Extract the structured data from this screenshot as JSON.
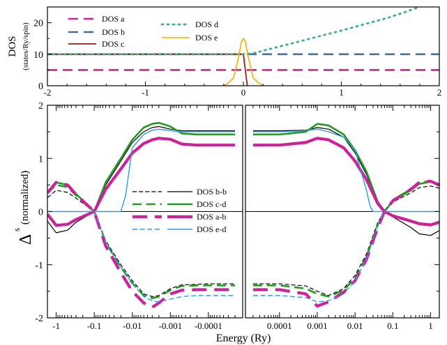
{
  "colors": {
    "dos_a": "#cc2299",
    "dos_b": "#4a6f8a",
    "dos_c": "#aa1111",
    "dos_d": "#3cae8c",
    "dos_e": "#ffaa00",
    "black": "#000000",
    "green": "#229922",
    "magenta": "#cc2299",
    "blue": "#2c9be0"
  },
  "chart_data": [
    {
      "type": "line",
      "ylabel": "DOS",
      "ylabel_sub": "(states/Ry/spin)",
      "xlim": [
        -2,
        2
      ],
      "ylim": [
        0,
        25
      ],
      "xticks": [
        "-2",
        "-1",
        "0",
        "1",
        "2"
      ],
      "yticks": [
        "0",
        "10",
        "20"
      ],
      "legend": [
        "DOS a",
        "DOS b",
        "DOS c",
        "DOS d",
        "DOS e"
      ],
      "series": [
        {
          "name": "DOS a",
          "style": "dash",
          "x": [
            -2,
            2
          ],
          "y": [
            5,
            5
          ]
        },
        {
          "name": "DOS b",
          "style": "dash",
          "x": [
            -2,
            2
          ],
          "y": [
            10,
            10
          ]
        },
        {
          "name": "DOS c",
          "style": "solid",
          "x": [
            -2,
            0,
            0.02,
            0.04
          ],
          "y": [
            10,
            10,
            5,
            0
          ]
        },
        {
          "name": "DOS d",
          "style": "dot",
          "x": [
            -2,
            0,
            0.1,
            0.5,
            1.0,
            1.5,
            1.8
          ],
          "y": [
            10,
            10,
            10.3,
            13.5,
            17.5,
            21.8,
            25
          ]
        },
        {
          "name": "DOS e",
          "style": "solid",
          "x": [
            -0.2,
            -0.15,
            -0.1,
            -0.05,
            -0.02,
            0,
            0.02,
            0.05,
            0.1,
            0.15,
            0.2
          ],
          "y": [
            0,
            1,
            2.5,
            9,
            14,
            15,
            14,
            9,
            2.5,
            1,
            0
          ]
        }
      ]
    },
    {
      "type": "line",
      "ylabel": "Δ",
      "ylabel_sup": "s",
      "ylabel_rest": "(normalized)",
      "xlabel": "Energy (Ry)",
      "ylim": [
        -2,
        2
      ],
      "yticks": [
        "-2",
        "-1",
        "0",
        "1",
        "2"
      ],
      "xscale": "symlog (log of |E|, mirrored about 0.05)",
      "left_xticks": [
        "-1",
        "-0.1",
        "-0.01",
        "-0.001",
        "-0.0001"
      ],
      "right_xticks": [
        "0.0001",
        "0.001",
        "0.01",
        "0.1",
        "1"
      ],
      "legend": [
        "DOS b-b",
        "DOS c-d",
        "DOS a-b",
        "DOS e-d"
      ],
      "series": [
        {
          "name": "DOS b-b",
          "side": "left",
          "style": "dash",
          "x": [
            -1.7,
            -1,
            -0.5,
            -0.3,
            -0.1,
            -0.05,
            -0.02,
            -0.01,
            -0.005,
            -0.003,
            -0.002,
            -0.001,
            -0.0005,
            -0.0002,
            -0.0001,
            -5e-05,
            -2e-05
          ],
          "y": [
            0.26,
            0.4,
            0.36,
            0.25,
            0,
            -0.55,
            -1.0,
            -1.3,
            -1.55,
            -1.6,
            -1.58,
            -1.45,
            -1.38,
            -1.37,
            -1.36,
            -1.36,
            -1.36
          ]
        },
        {
          "name": "DOS b-b",
          "side": "left",
          "style": "solid",
          "x": [
            -1.7,
            -1,
            -0.5,
            -0.3,
            -0.1,
            -0.05,
            -0.02,
            -0.01,
            -0.005,
            -0.003,
            -0.002,
            -0.001,
            -0.0005,
            -0.0002,
            -0.0001,
            -5e-05,
            -2e-05
          ],
          "y": [
            -0.18,
            -0.4,
            -0.35,
            -0.2,
            0,
            0.5,
            0.95,
            1.3,
            1.5,
            1.58,
            1.6,
            1.55,
            1.52,
            1.52,
            1.52,
            1.52,
            1.52
          ]
        },
        {
          "name": "DOS c-d",
          "side": "left",
          "style": "dash",
          "x": [
            -1.7,
            -1,
            -0.5,
            -0.3,
            -0.1,
            -0.05,
            -0.02,
            -0.01,
            -0.005,
            -0.003,
            -0.002,
            -0.001,
            -0.0005,
            -0.0002,
            -0.0001,
            -5e-05,
            -2e-05
          ],
          "y": [
            0.35,
            0.5,
            0.46,
            0.3,
            0,
            -0.58,
            -1.05,
            -1.35,
            -1.58,
            -1.63,
            -1.6,
            -1.48,
            -1.4,
            -1.39,
            -1.39,
            -1.39,
            -1.39
          ]
        },
        {
          "name": "DOS c-d",
          "side": "left",
          "style": "solid",
          "x": [
            -1.7,
            -1,
            -0.5,
            -0.3,
            -0.1,
            -0.05,
            -0.02,
            -0.01,
            -0.005,
            -0.003,
            -0.002,
            -0.001,
            -0.0005,
            -0.0002,
            -0.0001,
            -5e-05,
            -2e-05
          ],
          "y": [
            0.36,
            0.55,
            0.5,
            0.33,
            0,
            0.55,
            1.0,
            1.35,
            1.58,
            1.65,
            1.67,
            1.6,
            1.47,
            1.45,
            1.45,
            1.45,
            1.45
          ]
        },
        {
          "name": "DOS a-b",
          "side": "left",
          "style": "dash",
          "x": [
            -1.7,
            -1,
            -0.5,
            -0.3,
            -0.1,
            -0.05,
            -0.02,
            -0.01,
            -0.005,
            -0.003,
            -0.002,
            -0.001,
            -0.0005,
            -0.0002,
            -0.0001,
            -5e-05,
            -2e-05
          ],
          "y": [
            0.35,
            0.55,
            0.5,
            0.32,
            0,
            -0.65,
            -1.15,
            -1.5,
            -1.72,
            -1.8,
            -1.72,
            -1.55,
            -1.48,
            -1.47,
            -1.47,
            -1.47,
            -1.47
          ]
        },
        {
          "name": "DOS a-b",
          "side": "left",
          "style": "solid",
          "x": [
            -1.7,
            -1,
            -0.5,
            -0.3,
            -0.1,
            -0.05,
            -0.02,
            -0.01,
            -0.005,
            -0.003,
            -0.002,
            -0.001,
            -0.0005,
            -0.0002,
            -0.0001,
            -5e-05,
            -2e-05
          ],
          "y": [
            -0.05,
            -0.26,
            -0.24,
            -0.15,
            0,
            0.42,
            0.8,
            1.1,
            1.28,
            1.35,
            1.38,
            1.36,
            1.27,
            1.25,
            1.25,
            1.25,
            1.25
          ]
        },
        {
          "name": "DOS e-d",
          "side": "left",
          "style": "dash",
          "x": [
            -0.1,
            -0.05,
            -0.02,
            -0.01,
            -0.005,
            -0.003,
            -0.002,
            -0.001,
            -0.0005,
            -0.0002,
            -0.0001,
            -5e-05,
            -2e-05
          ],
          "y": [
            0,
            -0.58,
            -1.05,
            -1.35,
            -1.6,
            -1.68,
            -1.7,
            -1.65,
            -1.6,
            -1.58,
            -1.58,
            -1.58,
            -1.58
          ]
        },
        {
          "name": "DOS e-d",
          "side": "left",
          "style": "solid",
          "x": [
            -1.7,
            -0.05,
            -0.02,
            -0.015,
            -0.01,
            -0.005,
            -0.003,
            -0.002,
            -0.001,
            -0.0005,
            -0.0002,
            -0.0001,
            -5e-05,
            -2e-05
          ],
          "y": [
            0,
            0,
            0,
            0.3,
            1.2,
            1.45,
            1.53,
            1.55,
            1.52,
            1.5,
            1.5,
            1.5,
            1.5,
            1.5
          ]
        },
        {
          "name": "DOS b-b",
          "side": "right",
          "style": "dash",
          "x": [
            2e-05,
            0.0001,
            0.0005,
            0.001,
            0.002,
            0.005,
            0.01,
            0.02,
            0.04,
            0.06,
            0.1,
            0.3,
            0.5,
            1,
            1.7
          ],
          "y": [
            -1.36,
            -1.36,
            -1.4,
            -1.5,
            -1.58,
            -1.45,
            -1.2,
            -0.8,
            -0.2,
            0,
            0.18,
            0.35,
            0.45,
            0.48,
            0.44
          ]
        },
        {
          "name": "DOS b-b",
          "side": "right",
          "style": "solid",
          "x": [
            2e-05,
            0.0001,
            0.0005,
            0.001,
            0.002,
            0.005,
            0.01,
            0.02,
            0.04,
            0.06,
            0.1,
            0.3,
            0.5,
            1,
            1.7
          ],
          "y": [
            1.52,
            1.52,
            1.53,
            1.58,
            1.55,
            1.4,
            1.1,
            0.7,
            0.15,
            0,
            -0.1,
            -0.3,
            -0.42,
            -0.45,
            -0.36
          ]
        },
        {
          "name": "DOS c-d",
          "side": "right",
          "style": "dash",
          "x": [
            2e-05,
            0.0001,
            0.0005,
            0.001,
            0.002,
            0.005,
            0.01,
            0.02,
            0.04,
            0.06,
            0.1,
            0.3,
            0.5,
            1,
            1.7
          ],
          "y": [
            -1.39,
            -1.39,
            -1.45,
            -1.55,
            -1.6,
            -1.48,
            -1.25,
            -0.85,
            -0.25,
            0,
            0.22,
            0.42,
            0.55,
            0.57,
            0.5
          ]
        },
        {
          "name": "DOS c-d",
          "side": "right",
          "style": "solid",
          "x": [
            2e-05,
            0.0001,
            0.0005,
            0.001,
            0.002,
            0.005,
            0.01,
            0.02,
            0.04,
            0.06,
            0.1,
            0.3,
            0.5,
            1,
            1.7
          ],
          "y": [
            1.45,
            1.45,
            1.5,
            1.65,
            1.62,
            1.45,
            1.15,
            0.75,
            0.18,
            0,
            0.2,
            0.4,
            0.52,
            0.56,
            0.52
          ]
        },
        {
          "name": "DOS a-b",
          "side": "right",
          "style": "dash",
          "x": [
            2e-05,
            0.0001,
            0.0005,
            0.001,
            0.002,
            0.005,
            0.01,
            0.02,
            0.04,
            0.06,
            0.1,
            0.3,
            0.5,
            1,
            1.7
          ],
          "y": [
            -1.47,
            -1.47,
            -1.55,
            -1.78,
            -1.7,
            -1.52,
            -1.3,
            -0.9,
            -0.3,
            0,
            0.2,
            0.42,
            0.55,
            0.57,
            0.5
          ]
        },
        {
          "name": "DOS a-b",
          "side": "right",
          "style": "solid",
          "x": [
            2e-05,
            0.0001,
            0.0005,
            0.001,
            0.002,
            0.005,
            0.01,
            0.02,
            0.04,
            0.06,
            0.1,
            0.3,
            0.5,
            1,
            1.7
          ],
          "y": [
            1.25,
            1.25,
            1.3,
            1.38,
            1.35,
            1.2,
            0.95,
            0.6,
            0.15,
            0,
            -0.08,
            -0.18,
            -0.23,
            -0.25,
            -0.2
          ]
        },
        {
          "name": "DOS e-d",
          "side": "right",
          "style": "dash",
          "x": [
            2e-05,
            0.0001,
            0.0005,
            0.001,
            0.002,
            0.005,
            0.01,
            0.02,
            0.04,
            0.06
          ],
          "y": [
            -1.58,
            -1.58,
            -1.62,
            -1.7,
            -1.68,
            -1.55,
            -1.3,
            -0.9,
            -0.25,
            0
          ]
        },
        {
          "name": "DOS e-d",
          "side": "right",
          "style": "solid",
          "x": [
            2e-05,
            0.0001,
            0.0005,
            0.001,
            0.002,
            0.005,
            0.01,
            0.02,
            0.025,
            0.03,
            1.7
          ],
          "y": [
            1.5,
            1.5,
            1.52,
            1.55,
            1.5,
            1.4,
            1.15,
            0.4,
            0.1,
            0,
            0
          ]
        }
      ]
    }
  ]
}
